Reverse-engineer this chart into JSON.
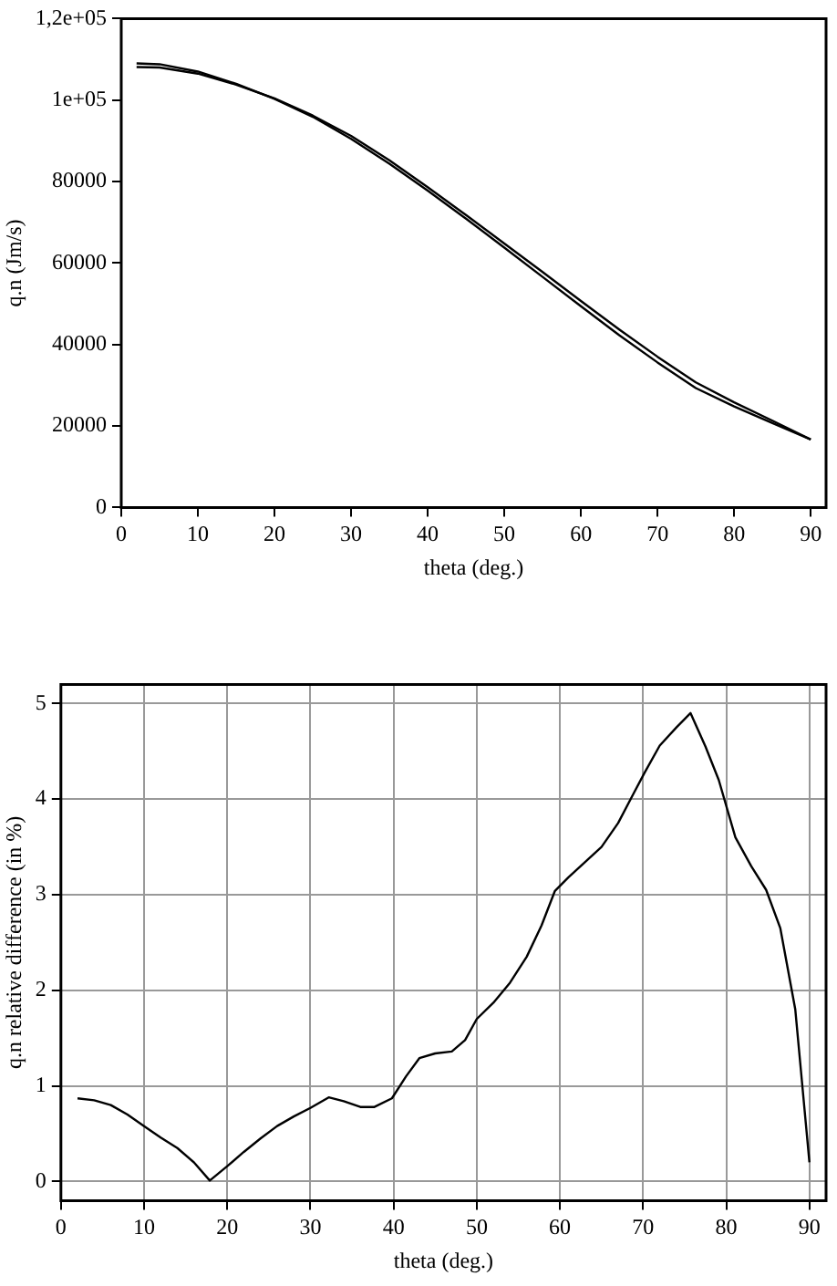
{
  "chart_data": [
    {
      "type": "line",
      "xlabel": "theta (deg.)",
      "ylabel": "q.n (Jm/s)",
      "xlim": [
        0,
        92
      ],
      "xticks": [
        0,
        10,
        20,
        30,
        40,
        50,
        60,
        70,
        80,
        90
      ],
      "ylim": [
        0,
        120000
      ],
      "yticks": [
        0,
        20000,
        40000,
        60000,
        80000,
        {
          "value": 100000,
          "label": "1e+05"
        },
        {
          "value": 120000,
          "label": "1,2e+05"
        }
      ],
      "grid": false,
      "x": [
        2,
        5,
        10,
        15,
        20,
        25,
        30,
        35,
        40,
        45,
        50,
        55,
        60,
        65,
        70,
        75,
        80,
        85,
        90
      ],
      "series": [
        {
          "color": "#000000",
          "values": [
            109000,
            108800,
            107000,
            104000,
            100300,
            95900,
            90500,
            84400,
            77800,
            70900,
            63800,
            56600,
            49400,
            42300,
            35600,
            29300,
            24800,
            20700,
            16700
          ]
        },
        {
          "color": "#000000",
          "values": [
            108100,
            108000,
            106500,
            103800,
            100400,
            96200,
            91200,
            85200,
            78600,
            71800,
            64800,
            57800,
            50700,
            43700,
            37000,
            30700,
            25800,
            21300,
            16700
          ]
        }
      ]
    },
    {
      "type": "line",
      "xlabel": "theta (deg.)",
      "ylabel": "q.n relative difference (in %)",
      "xlim": [
        0,
        92
      ],
      "xticks": [
        0,
        10,
        20,
        30,
        40,
        50,
        60,
        70,
        80,
        90
      ],
      "ylim": [
        -0.2,
        5.2
      ],
      "yticks": [
        0,
        1,
        2,
        3,
        4,
        5
      ],
      "grid": true,
      "x": [
        2,
        4,
        6,
        8,
        10,
        12,
        14,
        16,
        17.9,
        20,
        22,
        24,
        26,
        28,
        30,
        32.2,
        34,
        36,
        37.7,
        39.8,
        41.5,
        43.1,
        45,
        47,
        48.6,
        50,
        52,
        54,
        56,
        57.8,
        59.4,
        61,
        63,
        65,
        67,
        68.8,
        70.2,
        72,
        74,
        75.7,
        77.5,
        79.1,
        81.1,
        83,
        84.8,
        86.5,
        88.3,
        90
      ],
      "series": [
        {
          "color": "#000000",
          "values": [
            0.87,
            0.85,
            0.8,
            0.7,
            0.58,
            0.46,
            0.35,
            0.2,
            0.01,
            0.16,
            0.31,
            0.45,
            0.58,
            0.68,
            0.77,
            0.88,
            0.84,
            0.78,
            0.78,
            0.87,
            1.1,
            1.29,
            1.34,
            1.36,
            1.48,
            1.7,
            1.87,
            2.08,
            2.35,
            2.68,
            3.04,
            3.18,
            3.34,
            3.5,
            3.75,
            4.05,
            4.28,
            4.56,
            4.75,
            4.9,
            4.55,
            4.2,
            3.6,
            3.3,
            3.05,
            2.65,
            1.8,
            0.2
          ]
        }
      ]
    }
  ]
}
